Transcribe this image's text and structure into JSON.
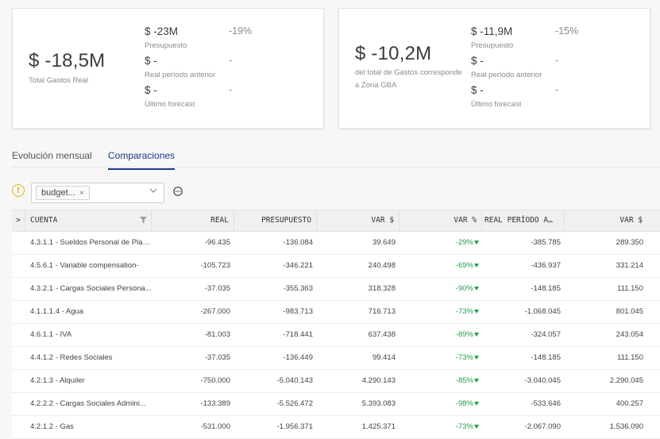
{
  "card1": {
    "big_value": "$ -18,5M",
    "big_caption": "Total Gastos Real",
    "metrics": [
      {
        "value": "$ -23M",
        "pct": "-19%",
        "label": "Presupuesto"
      },
      {
        "value": "$ -",
        "pct": "-",
        "label": "Real período anterior"
      },
      {
        "value": "$ -",
        "pct": "-",
        "label": "Último forecast"
      }
    ]
  },
  "card2": {
    "big_value": "$ -10,2M",
    "big_caption_1": "del total de Gastos corresponde",
    "big_caption_2": "a Zona GBA",
    "metrics": [
      {
        "value": "$ -11,9M",
        "pct": "-15%",
        "label": "Presupuesto"
      },
      {
        "value": "$ -",
        "pct": "-",
        "label": "Real período anterior"
      },
      {
        "value": "$ -",
        "pct": "-",
        "label": "Último forecast"
      }
    ]
  },
  "tabs": [
    "Evolución mensual",
    "Comparaciones"
  ],
  "filter": {
    "chip_label": "budget...",
    "chip_remove": "×"
  },
  "table": {
    "expand_glyph": ">",
    "headers": [
      "CUENTA",
      "REAL",
      "PRESUPUESTO",
      "VAR $",
      "VAR %",
      "REAL PERÍODO A…",
      "VAR $"
    ],
    "rows": [
      {
        "cuenta": "4.3.1.1 - Sueldos Personal de Plan...",
        "real": "-96.435",
        "presupuesto": "-136.084",
        "var": "39.649",
        "var_pct": "-29%",
        "real_ant": "-385.785",
        "var2": "289.350"
      },
      {
        "cuenta": "4.5.6.1 - Variable compensation-",
        "real": "-105.723",
        "presupuesto": "-346.221",
        "var": "240.498",
        "var_pct": "-69%",
        "real_ant": "-436.937",
        "var2": "331.214"
      },
      {
        "cuenta": "4.3.2.1 - Cargas Sociales Persona...",
        "real": "-37.035",
        "presupuesto": "-355.363",
        "var": "318.328",
        "var_pct": "-90%",
        "real_ant": "-148.185",
        "var2": "111.150"
      },
      {
        "cuenta": "4.1.1.1.4 - Agua",
        "real": "-267.000",
        "presupuesto": "-983.713",
        "var": "716.713",
        "var_pct": "-73%",
        "real_ant": "-1.068.045",
        "var2": "801.045"
      },
      {
        "cuenta": "4.6.1.1 - IVA",
        "real": "-81.003",
        "presupuesto": "-718.441",
        "var": "637.438",
        "var_pct": "-89%",
        "real_ant": "-324.057",
        "var2": "243.054"
      },
      {
        "cuenta": "4.4.1.2 - Redes Sociales",
        "real": "-37.035",
        "presupuesto": "-136.449",
        "var": "99.414",
        "var_pct": "-73%",
        "real_ant": "-148.185",
        "var2": "111.150"
      },
      {
        "cuenta": "4.2.1.3 - Alquiler",
        "real": "-750.000",
        "presupuesto": "-5.040.143",
        "var": "4.290.143",
        "var_pct": "-85%",
        "real_ant": "-3.040.045",
        "var2": "2.290.045"
      },
      {
        "cuenta": "4.2.2.2 - Cargas Sociales Admini...",
        "real": "-133.389",
        "presupuesto": "-5.526.472",
        "var": "5.393.083",
        "var_pct": "-98%",
        "real_ant": "-533.646",
        "var2": "400.257"
      },
      {
        "cuenta": "4.2.1.2 - Gas",
        "real": "-531.000",
        "presupuesto": "-1.956.371",
        "var": "1.425.371",
        "var_pct": "-73%",
        "real_ant": "-2.067.090",
        "var2": "1.536.090"
      }
    ]
  },
  "colors": {
    "accent": "#1d3a8a",
    "positive": "#1f9d4c",
    "warning": "#e0b400"
  }
}
